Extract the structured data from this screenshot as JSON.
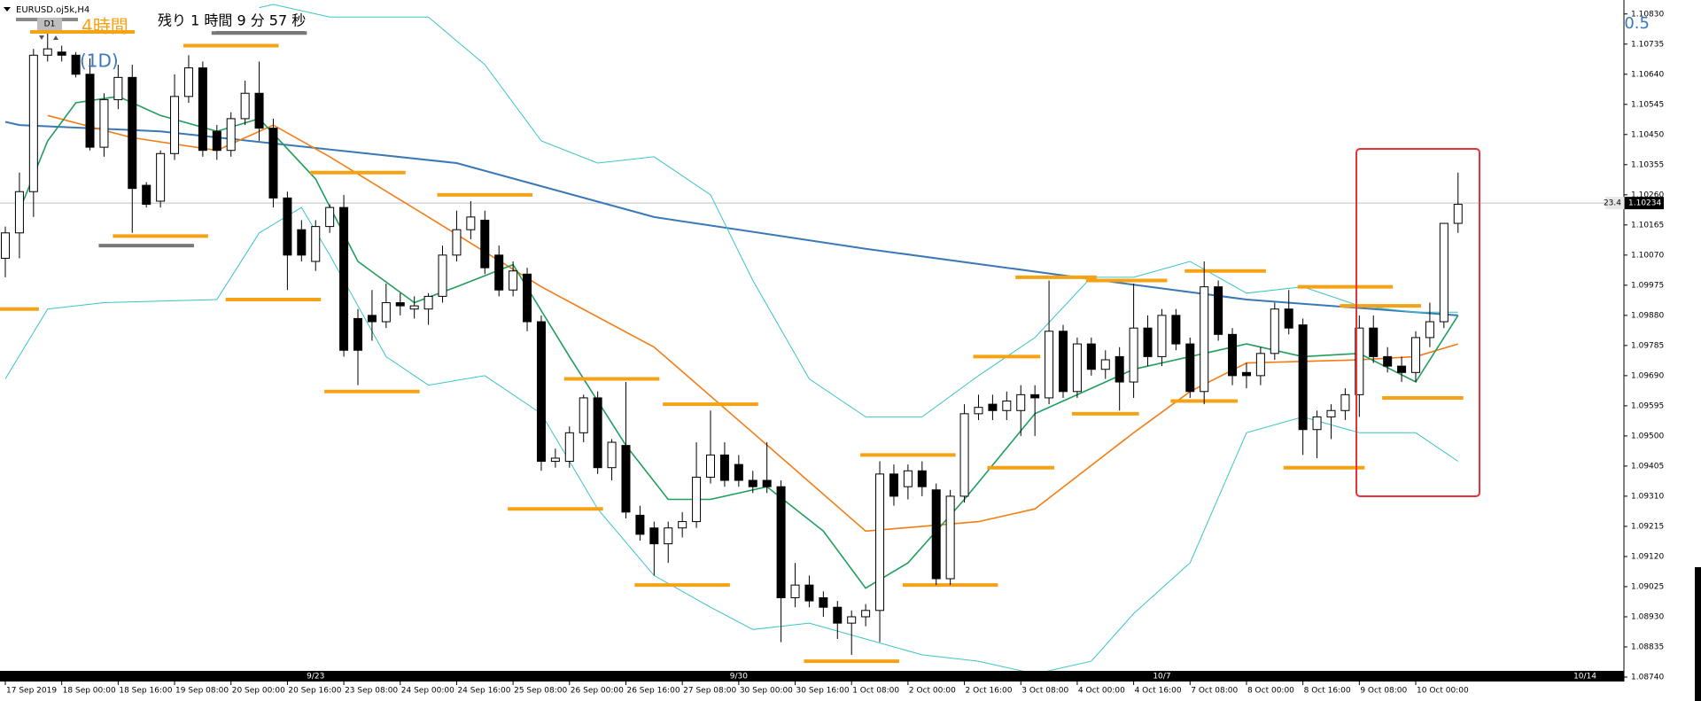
{
  "chart_data": {
    "type": "candlestick",
    "symbol": "EURUSD.oj5k,H4",
    "timeframe_button": "D1",
    "label_4h": "4時間",
    "label_1d": "(1D)",
    "remaining": "残り 1 時間 9 分 57 秒",
    "corner_value": "0.5",
    "indicator_value": "23.4",
    "last_price": {
      "value": 1.10234,
      "label": "1.10234"
    },
    "up_color": "#ffffff",
    "down_color": "#000000",
    "ylim": [
      1.08726,
      1.10874
    ],
    "yticks": [
      {
        "value": 1.1083,
        "label": "1.10830"
      },
      {
        "value": 1.10735,
        "label": "1.10735"
      },
      {
        "value": 1.1064,
        "label": "1.10640"
      },
      {
        "value": 1.10545,
        "label": "1.10545"
      },
      {
        "value": 1.1045,
        "label": "1.10450"
      },
      {
        "value": 1.10355,
        "label": "1.10355"
      },
      {
        "value": 1.1026,
        "label": "1.10260"
      },
      {
        "value": 1.10165,
        "label": "1.10165"
      },
      {
        "value": 1.1007,
        "label": "1.10070"
      },
      {
        "value": 1.09975,
        "label": "1.09975"
      },
      {
        "value": 1.0988,
        "label": "1.09880"
      },
      {
        "value": 1.09785,
        "label": "1.09785"
      },
      {
        "value": 1.0969,
        "label": "1.09690"
      },
      {
        "value": 1.09595,
        "label": "1.09595"
      },
      {
        "value": 1.095,
        "label": "1.09500"
      },
      {
        "value": 1.09405,
        "label": "1.09405"
      },
      {
        "value": 1.0931,
        "label": "1.09310"
      },
      {
        "value": 1.09215,
        "label": "1.09215"
      },
      {
        "value": 1.0912,
        "label": "1.09120"
      },
      {
        "value": 1.09025,
        "label": "1.09025"
      },
      {
        "value": 1.0893,
        "label": "1.08930"
      },
      {
        "value": 1.08835,
        "label": "1.08835"
      },
      {
        "value": 1.0874,
        "label": "1.08740"
      }
    ],
    "categories": [
      "17 Sep 2019",
      null,
      null,
      null,
      "18 Sep 00:00",
      null,
      null,
      null,
      "18 Sep 16:00",
      null,
      null,
      null,
      "19 Sep 08:00",
      null,
      null,
      null,
      "20 Sep 00:00",
      null,
      null,
      null,
      "20 Sep 16:00",
      null,
      null,
      null,
      "23 Sep 08:00",
      null,
      null,
      null,
      "24 Sep 00:00",
      null,
      null,
      null,
      "24 Sep 16:00",
      null,
      null,
      null,
      "25 Sep 08:00",
      null,
      null,
      null,
      "26 Sep 00:00",
      null,
      null,
      null,
      "26 Sep 16:00",
      null,
      null,
      null,
      "27 Sep 08:00",
      null,
      null,
      null,
      "30 Sep 00:00",
      null,
      null,
      null,
      "30 Sep 16:00",
      null,
      null,
      null,
      "1 Oct 08:00",
      null,
      null,
      null,
      "2 Oct 00:00",
      null,
      null,
      null,
      "2 Oct 16:00",
      null,
      null,
      null,
      "3 Oct 08:00",
      null,
      null,
      null,
      "4 Oct 00:00",
      null,
      null,
      null,
      "4 Oct 16:00",
      null,
      null,
      null,
      "7 Oct 08:00",
      null,
      null,
      null,
      "8 Oct 00:00",
      null,
      null,
      null,
      "8 Oct 16:00",
      null,
      null,
      null,
      "9 Oct 08:00",
      null,
      null,
      null,
      "10 Oct 00:00",
      null,
      null,
      null
    ],
    "candles": [
      [
        1.1006,
        1.1016,
        1.1,
        1.1014
      ],
      [
        1.1014,
        1.1033,
        1.1006,
        1.1027
      ],
      [
        1.1027,
        1.1072,
        1.1019,
        1.107
      ],
      [
        1.107,
        1.1077,
        1.1068,
        1.1072
      ],
      [
        1.1071,
        1.1073,
        1.1068,
        1.107
      ],
      [
        1.107,
        1.1071,
        1.1063,
        1.1064
      ],
      [
        1.1064,
        1.1069,
        1.104,
        1.1041
      ],
      [
        1.1041,
        1.1058,
        1.1038,
        1.1056
      ],
      [
        1.1056,
        1.1067,
        1.1053,
        1.1063
      ],
      [
        1.1063,
        1.1067,
        1.1014,
        1.1028
      ],
      [
        1.1029,
        1.103,
        1.1022,
        1.1023
      ],
      [
        1.1024,
        1.104,
        1.1022,
        1.1039
      ],
      [
        1.1039,
        1.1064,
        1.1037,
        1.1057
      ],
      [
        1.1057,
        1.107,
        1.1055,
        1.1066
      ],
      [
        1.1066,
        1.1068,
        1.1038,
        1.104
      ],
      [
        1.1046,
        1.1048,
        1.1037,
        1.104
      ],
      [
        1.104,
        1.1052,
        1.1038,
        1.105
      ],
      [
        1.105,
        1.1062,
        1.1048,
        1.1058
      ],
      [
        1.1058,
        1.1068,
        1.1043,
        1.1047
      ],
      [
        1.1047,
        1.105,
        1.1022,
        1.1025
      ],
      [
        1.1025,
        1.1027,
        1.0996,
        1.1007
      ],
      [
        1.1015,
        1.1018,
        1.1005,
        1.1007
      ],
      [
        1.1005,
        1.1018,
        1.1002,
        1.1016
      ],
      [
        1.1016,
        1.1023,
        1.1014,
        1.1022
      ],
      [
        1.1022,
        1.1026,
        1.0975,
        1.0977
      ],
      [
        1.0987,
        1.099,
        1.0966,
        1.0977
      ],
      [
        1.0988,
        1.0996,
        1.098,
        1.0986
      ],
      [
        1.0986,
        1.0998,
        1.0984,
        1.0992
      ],
      [
        1.0992,
        1.0995,
        1.0988,
        1.0991
      ],
      [
        1.099,
        1.0994,
        1.0987,
        1.0991
      ],
      [
        1.099,
        1.0995,
        1.0985,
        1.0994
      ],
      [
        1.0994,
        1.101,
        1.0992,
        1.1007
      ],
      [
        1.1007,
        1.1021,
        1.1005,
        1.1015
      ],
      [
        1.1015,
        1.1024,
        1.1012,
        1.1019
      ],
      [
        1.1018,
        1.1021,
        1.1001,
        1.1003
      ],
      [
        1.1007,
        1.101,
        1.0994,
        1.0996
      ],
      [
        1.0996,
        1.1005,
        1.0994,
        1.1002
      ],
      [
        1.1001,
        1.1003,
        1.0983,
        1.0986
      ],
      [
        1.0986,
        1.0988,
        1.0939,
        1.0942
      ],
      [
        1.0942,
        1.0946,
        1.094,
        1.0943
      ],
      [
        1.0942,
        1.0953,
        1.094,
        1.0951
      ],
      [
        1.0951,
        1.0963,
        1.0948,
        1.0962
      ],
      [
        1.0962,
        1.0964,
        1.0938,
        1.094
      ],
      [
        1.094,
        1.0949,
        1.0936,
        1.0948
      ],
      [
        1.0947,
        1.0967,
        1.0924,
        1.0926
      ],
      [
        1.0925,
        1.0928,
        1.0917,
        1.0919
      ],
      [
        1.0921,
        1.0923,
        1.0906,
        1.0916
      ],
      [
        1.0916,
        1.0923,
        1.091,
        1.0921
      ],
      [
        1.0921,
        1.0926,
        1.0918,
        1.0923
      ],
      [
        1.0923,
        1.0948,
        1.0921,
        1.0937
      ],
      [
        1.0937,
        1.0958,
        1.0935,
        1.0944
      ],
      [
        1.0944,
        1.0948,
        1.0934,
        1.0936
      ],
      [
        1.0941,
        1.0944,
        1.0934,
        1.0936
      ],
      [
        1.0936,
        1.0939,
        1.0932,
        1.0934
      ],
      [
        1.0936,
        1.0948,
        1.0932,
        1.0934
      ],
      [
        1.0934,
        1.0936,
        1.0885,
        1.0899
      ],
      [
        1.0899,
        1.091,
        1.0896,
        1.0903
      ],
      [
        1.0903,
        1.0906,
        1.0896,
        1.0898
      ],
      [
        1.0899,
        1.0901,
        1.0893,
        1.0896
      ],
      [
        1.0896,
        1.0898,
        1.0886,
        1.0891
      ],
      [
        1.0891,
        1.0895,
        1.0881,
        1.0893
      ],
      [
        1.0893,
        1.0897,
        1.089,
        1.0895
      ],
      [
        1.0895,
        1.0942,
        1.0885,
        1.0938
      ],
      [
        1.0938,
        1.0941,
        1.0928,
        1.0931
      ],
      [
        1.0934,
        1.0941,
        1.093,
        1.0939
      ],
      [
        1.0939,
        1.0942,
        1.0931,
        1.0934
      ],
      [
        1.0933,
        1.0935,
        1.0903,
        1.0905
      ],
      [
        1.0905,
        1.0933,
        1.0903,
        1.0931
      ],
      [
        1.0931,
        1.096,
        1.0929,
        1.0957
      ],
      [
        1.0957,
        1.0963,
        1.0955,
        1.0959
      ],
      [
        1.096,
        1.0963,
        1.0955,
        1.0958
      ],
      [
        1.0958,
        1.0964,
        1.0955,
        1.0961
      ],
      [
        1.0958,
        1.0966,
        1.095,
        1.0963
      ],
      [
        1.0963,
        1.0966,
        1.095,
        1.0962
      ],
      [
        1.0962,
        1.0999,
        1.096,
        1.0983
      ],
      [
        1.0983,
        1.0985,
        1.0962,
        1.0964
      ],
      [
        1.0964,
        1.0981,
        1.0962,
        1.0979
      ],
      [
        1.0979,
        1.0981,
        1.0969,
        1.0971
      ],
      [
        1.0971,
        1.0977,
        1.0968,
        1.0974
      ],
      [
        1.0975,
        1.0978,
        1.0958,
        1.0967
      ],
      [
        1.0967,
        1.0998,
        1.0962,
        1.0984
      ],
      [
        1.0984,
        1.0988,
        1.0972,
        1.0975
      ],
      [
        1.0975,
        1.099,
        1.0972,
        1.0988
      ],
      [
        1.0988,
        1.099,
        1.0977,
        1.0979
      ],
      [
        1.0979,
        1.0981,
        1.0962,
        1.0964
      ],
      [
        1.0964,
        1.1005,
        1.096,
        1.0997
      ],
      [
        1.0997,
        1.0999,
        1.098,
        1.0982
      ],
      [
        1.0982,
        1.0984,
        1.0966,
        1.0969
      ],
      [
        1.097,
        1.0973,
        1.0965,
        1.0969
      ],
      [
        1.0969,
        1.0978,
        1.0966,
        1.0976
      ],
      [
        1.0976,
        1.0992,
        1.0974,
        1.099
      ],
      [
        1.099,
        1.0996,
        1.0982,
        1.0984
      ],
      [
        1.0985,
        1.0987,
        1.0944,
        1.0952
      ],
      [
        1.0952,
        1.0958,
        1.0943,
        1.0956
      ],
      [
        1.0956,
        1.096,
        1.0949,
        1.0958
      ],
      [
        1.0958,
        1.0965,
        1.0955,
        1.0963
      ],
      [
        1.0963,
        1.0988,
        1.0956,
        1.0984
      ],
      [
        1.0984,
        1.0988,
        1.0973,
        1.0975
      ],
      [
        1.0975,
        1.0978,
        1.097,
        1.0972
      ],
      [
        1.0972,
        1.0975,
        1.0967,
        1.097
      ],
      [
        1.097,
        1.0983,
        1.0967,
        1.0981
      ],
      [
        1.0981,
        1.0992,
        1.0978,
        1.0986
      ],
      [
        1.0986,
        1.1017,
        1.0984,
        1.1017
      ],
      [
        1.1017,
        1.1033,
        1.1014,
        1.1023
      ]
    ],
    "lines": [
      {
        "color": "#3a78b8",
        "width": 2,
        "x": [
          0,
          1,
          11,
          32,
          46,
          61,
          76,
          88,
          103
        ],
        "values": [
          1.1049,
          1.1048,
          1.1046,
          1.1036,
          1.1019,
          1.1009,
          1.1,
          1.0993,
          1.0988
        ]
      },
      {
        "color": "#f47c14",
        "width": 1.6,
        "x": [
          3,
          9,
          15,
          19,
          23,
          30,
          38,
          46,
          53,
          61,
          69,
          73,
          80,
          84,
          88,
          96,
          100,
          103
        ],
        "values": [
          1.1051,
          1.1044,
          1.104,
          1.1048,
          1.1038,
          1.1019,
          1.0997,
          1.0978,
          1.0951,
          1.092,
          1.0923,
          1.0927,
          1.0951,
          1.0964,
          1.0973,
          1.0974,
          1.0975,
          1.0979
        ]
      },
      {
        "color": "#1f9e5a",
        "width": 1.6,
        "x": [
          1,
          3,
          5,
          8,
          11,
          15,
          18,
          22,
          25,
          29,
          32,
          36,
          40,
          44,
          47,
          50,
          54,
          58,
          61,
          64,
          68,
          73,
          76,
          80,
          84,
          88,
          92,
          96,
          100,
          103
        ],
        "values": [
          1.1021,
          1.1043,
          1.1055,
          1.1057,
          1.1051,
          1.1046,
          1.105,
          1.1031,
          1.1005,
          1.0992,
          1.0997,
          1.1004,
          1.0975,
          1.0947,
          1.093,
          1.093,
          1.0934,
          1.092,
          1.0902,
          1.091,
          1.093,
          1.0957,
          1.0963,
          1.0971,
          1.0975,
          1.0979,
          1.0975,
          1.0976,
          1.0967,
          1.0988
        ]
      },
      {
        "color": "#3cc4c4",
        "width": 1,
        "x": [
          18,
          19,
          23,
          30,
          34,
          38,
          42,
          46,
          50,
          53,
          57,
          61,
          65,
          69,
          73,
          77,
          80,
          84,
          88,
          92,
          96,
          100,
          103
        ],
        "values": [
          1.1085,
          1.1086,
          1.1082,
          1.1082,
          1.1067,
          1.1043,
          1.1036,
          1.1038,
          1.1026,
          1.0999,
          1.0968,
          1.0956,
          1.0956,
          1.0969,
          1.0981,
          1.1,
          1.1,
          1.1005,
          1.0995,
          1.0997,
          1.0991,
          1.0989,
          1.0989
        ]
      },
      {
        "color": "#3cc4c4",
        "width": 1,
        "x": [
          0,
          3,
          7,
          15,
          18,
          21,
          23,
          27,
          30,
          34,
          38,
          42,
          46,
          50,
          53,
          57,
          61,
          65,
          69,
          73,
          77,
          80,
          84,
          88,
          92,
          96,
          100,
          103
        ],
        "values": [
          1.0968,
          1.099,
          1.0992,
          1.0993,
          1.1014,
          1.1022,
          1.1007,
          1.0975,
          1.0966,
          1.0969,
          1.0957,
          1.0927,
          1.0906,
          1.0896,
          1.0889,
          1.0891,
          1.0886,
          1.0881,
          1.0879,
          1.0875,
          1.0879,
          1.0894,
          1.091,
          1.0951,
          1.0956,
          1.0951,
          1.0951,
          1.0942
        ]
      }
    ],
    "levels": [
      {
        "value": 1.099,
        "x": [
          0,
          2
        ],
        "color": "#f5a314"
      },
      {
        "value": 1.1013,
        "x": [
          8,
          14
        ],
        "color": "#f5a314"
      },
      {
        "value": 1.1073,
        "x": [
          13,
          19
        ],
        "color": "#f5a314"
      },
      {
        "value": 1.0993,
        "x": [
          16,
          22
        ],
        "color": "#f5a314"
      },
      {
        "value": 1.1033,
        "x": [
          22,
          28
        ],
        "color": "#f5a314"
      },
      {
        "value": 1.0964,
        "x": [
          23,
          29
        ],
        "color": "#f5a314"
      },
      {
        "value": 1.1026,
        "x": [
          31,
          37
        ],
        "color": "#f5a314"
      },
      {
        "value": 1.0927,
        "x": [
          36,
          42
        ],
        "color": "#f5a314"
      },
      {
        "value": 1.0968,
        "x": [
          40,
          46
        ],
        "color": "#f5a314"
      },
      {
        "value": 1.0903,
        "x": [
          45,
          51
        ],
        "color": "#f5a314"
      },
      {
        "value": 1.096,
        "x": [
          47,
          53
        ],
        "color": "#f5a314"
      },
      {
        "value": 1.0879,
        "x": [
          57,
          63
        ],
        "color": "#f5a314"
      },
      {
        "value": 1.0944,
        "x": [
          61,
          67
        ],
        "color": "#f5a314"
      },
      {
        "value": 1.0903,
        "x": [
          64,
          70
        ],
        "color": "#f5a314"
      },
      {
        "value": 1.0975,
        "x": [
          69,
          73
        ],
        "color": "#f5a314"
      },
      {
        "value": 1.094,
        "x": [
          70,
          74
        ],
        "color": "#f5a314"
      },
      {
        "value": 1.1,
        "x": [
          72,
          77
        ],
        "color": "#f5a314"
      },
      {
        "value": 1.0957,
        "x": [
          76,
          80
        ],
        "color": "#f5a314"
      },
      {
        "value": 1.0999,
        "x": [
          77,
          82
        ],
        "color": "#f5a314"
      },
      {
        "value": 1.0961,
        "x": [
          83,
          87
        ],
        "color": "#f5a314"
      },
      {
        "value": 1.1002,
        "x": [
          84,
          89
        ],
        "color": "#f5a314"
      },
      {
        "value": 1.094,
        "x": [
          91,
          96
        ],
        "color": "#f5a314"
      },
      {
        "value": 1.0997,
        "x": [
          92,
          98
        ],
        "color": "#f5a314"
      },
      {
        "value": 1.0991,
        "x": [
          95,
          100
        ],
        "color": "#f5a314"
      },
      {
        "value": 1.0962,
        "x": [
          98,
          103
        ],
        "color": "#f5a314"
      },
      {
        "value": 1.101,
        "x": [
          7,
          13
        ],
        "color": "#777777"
      },
      {
        "value": 1.1077,
        "x": [
          15,
          21
        ],
        "color": "#777777"
      }
    ],
    "week_labels": [
      {
        "index": 22,
        "label": "9/23"
      },
      {
        "index": 52,
        "label": "9/30"
      },
      {
        "index": 82,
        "label": "10/7"
      },
      {
        "index": 112,
        "label": "10/14"
      }
    ]
  }
}
